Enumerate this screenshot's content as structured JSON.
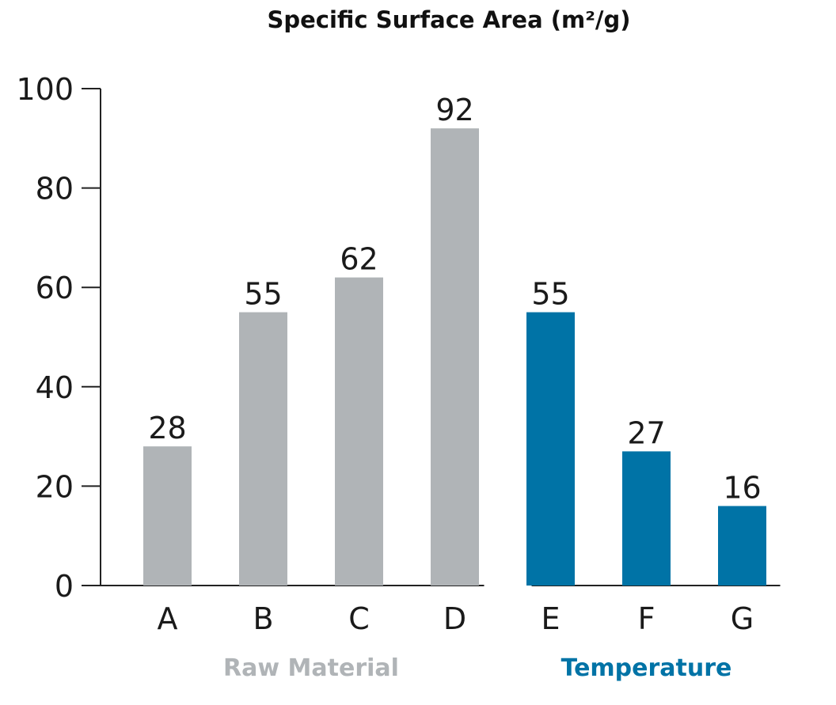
{
  "chart_data": {
    "type": "bar",
    "title": "Specific Surface Area (m²/g)",
    "xlabel": "",
    "ylabel": "",
    "ylim": [
      0,
      100
    ],
    "yticks": [
      0,
      20,
      40,
      60,
      80,
      100
    ],
    "grid": false,
    "categories": [
      "A",
      "B",
      "C",
      "D",
      "E",
      "F",
      "G"
    ],
    "values": [
      28,
      55,
      62,
      92,
      55,
      27,
      16
    ],
    "data_labels": [
      "28",
      "55",
      "62",
      "92",
      "55",
      "27",
      "16"
    ],
    "groups": [
      {
        "label": "Raw Material",
        "categories": [
          "A",
          "B",
          "C",
          "D"
        ],
        "color": "#B0B4B7"
      },
      {
        "label": "Temperature",
        "categories": [
          "E",
          "F",
          "G"
        ],
        "color": "#0073A6"
      }
    ]
  }
}
